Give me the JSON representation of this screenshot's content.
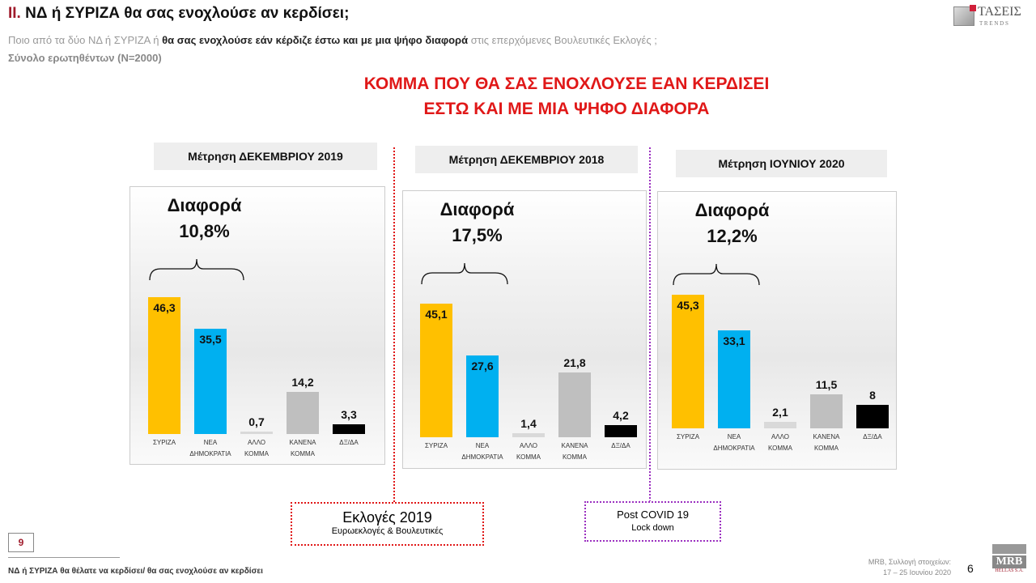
{
  "header": {
    "number": "II.",
    "title": "ΝΔ  ή ΣΥΡΙΖΑ θα σας ενοχλούσε αν κερδίσει;",
    "question_pre": "Ποιο από τα δύο ΝΔ ή ΣΥΡΙΖΑ ή ",
    "question_bold": "θα σας ενοχλούσε εάν κέρδιζε έστω και με μια ψήφο διαφορά",
    "question_post": " στις επερχόμενες Βουλευτικές Εκλογές ;",
    "base": "Σύνολο ερωτηθέντων (N=2000)",
    "logo_text": "ΤΑΣΕΙΣ",
    "logo_sub": "T R E N D S"
  },
  "headline": [
    "ΚΟΜΜΑ ΠΟΥ ΘΑ ΣΑΣ ΕΝΟΧΛΟΥΣΕ ΕΑΝ ΚΕΡΔΙΣΕΙ",
    "ΕΣΤΩ ΚΑΙ ΜΕ ΜΙΑ ΨΗΦΟ ΔΙΑΦΟΡΑ"
  ],
  "colors": [
    "#FFC000",
    "#00B0F0",
    "#D9D9D9",
    "#BFBFBF",
    "#000000"
  ],
  "chart_data": [
    {
      "type": "bar",
      "title": "Μέτρηση ΔΕΚΕΜΒΡΙΟΥ 2019",
      "diff_label": "Διαφορά",
      "diff_value": "10,8%",
      "categories": [
        "ΣΥΡΙΖΑ",
        "ΝΕΑ ΔΗΜΟΚΡΑΤΙΑ",
        "ΑΛΛΟ ΚΟΜΜΑ",
        "ΚΑΝΕΝΑ ΚΟΜΜΑ",
        "ΔΞ/ΔΑ"
      ],
      "values": [
        46.3,
        35.5,
        0.7,
        14.2,
        3.3
      ],
      "labels": [
        "46,3",
        "35,5",
        "0,7",
        "14,2",
        "3,3"
      ]
    },
    {
      "type": "bar",
      "title": "Μέτρηση ΔΕΚΕΜΒΡΙΟΥ 2018",
      "diff_label": "Διαφορά",
      "diff_value": "17,5%",
      "categories": [
        "ΣΥΡΙΖΑ",
        "ΝΕΑ ΔΗΜΟΚΡΑΤΙΑ",
        "ΑΛΛΟ ΚΟΜΜΑ",
        "ΚΑΝΕΝΑ ΚΟΜΜΑ",
        "ΔΞ/ΔΑ"
      ],
      "values": [
        45.1,
        27.6,
        1.4,
        21.8,
        4.2
      ],
      "labels": [
        "45,1",
        "27,6",
        "1,4",
        "21,8",
        "4,2"
      ]
    },
    {
      "type": "bar",
      "title": "Μέτρηση ΙΟΥΝΙΟΥ 2020",
      "diff_label": "Διαφορά",
      "diff_value": "12,2%",
      "categories": [
        "ΣΥΡΙΖΑ",
        "ΝΕΑ ΔΗΜΟΚΡΑΤΙΑ",
        "ΑΛΛΟ ΚΟΜΜΑ",
        "ΚΑΝΕΝΑ ΚΟΜΜΑ",
        "ΔΞ/ΔΑ"
      ],
      "values": [
        45.3,
        33.1,
        2.1,
        11.5,
        8
      ],
      "labels": [
        "45,3",
        "33,1",
        "2,1",
        "11,5",
        "8"
      ]
    }
  ],
  "callouts": [
    {
      "title": "Εκλογές 2019",
      "sub": "Ευρωεκλογές & Βουλευτικές",
      "color": "#e01818"
    },
    {
      "title": "Post  COVID 19",
      "sub": "Lock down",
      "color": "#9b30c0"
    }
  ],
  "footer": {
    "page_box": "9",
    "note": "ΝΔ ή ΣΥΡΙΖΑ θα θέλατε να κερδίσει/ θα σας ενοχλούσε αν κερδίσει",
    "source": "MRB, Συλλογή στοιχείων:",
    "dates": "17 – 25 Ιουνίου 2020",
    "page": "6",
    "mrb_logo": "MRB",
    "mrb_sub": "HELLAS S.A."
  }
}
